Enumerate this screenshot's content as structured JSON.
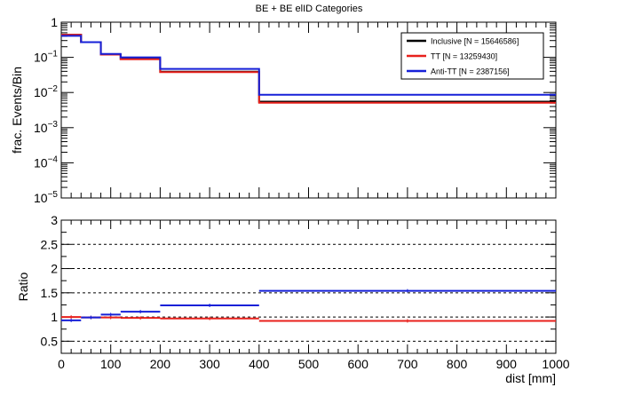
{
  "chart_data": [
    {
      "type": "line",
      "step": true,
      "title": "BE + BE elID Categories",
      "ylabel": "frac. Events/Bin",
      "xlabel": "",
      "xlim": [
        0,
        1000
      ],
      "ylim": [
        1e-05,
        1
      ],
      "yscale": "log",
      "yticks": [
        {
          "v": 1,
          "base": "1",
          "exp": ""
        },
        {
          "v": 0.1,
          "base": "10",
          "exp": "−1"
        },
        {
          "v": 0.01,
          "base": "10",
          "exp": "−2"
        },
        {
          "v": 0.001,
          "base": "10",
          "exp": "−3"
        },
        {
          "v": 0.0001,
          "base": "10",
          "exp": "−4"
        },
        {
          "v": 1e-05,
          "base": "10",
          "exp": "−5"
        }
      ],
      "bin_edges": [
        0,
        40,
        80,
        120,
        200,
        400,
        1000
      ],
      "legend_position": "top-right",
      "series": [
        {
          "name": "Inclusive [N = 15646586]",
          "color": "#000000",
          "values": [
            0.44,
            0.27,
            0.12,
            0.09,
            0.039,
            0.0055
          ]
        },
        {
          "name": "TT [N = 13259430]",
          "color": "#e8211c",
          "values": [
            0.44,
            0.27,
            0.12,
            0.088,
            0.038,
            0.0051
          ]
        },
        {
          "name": "Anti-TT [N = 2387156]",
          "color": "#1620d8",
          "values": [
            0.41,
            0.27,
            0.125,
            0.1,
            0.047,
            0.0086
          ]
        }
      ]
    },
    {
      "type": "line",
      "step": true,
      "title": "",
      "ylabel": "Ratio",
      "xlabel": "dist [mm]",
      "xlim": [
        0,
        1000
      ],
      "ylim": [
        0.25,
        3
      ],
      "xticks": [
        0,
        100,
        200,
        300,
        400,
        500,
        600,
        700,
        800,
        900,
        1000
      ],
      "yticks": [
        0.5,
        1,
        1.5,
        2,
        2.5,
        3
      ],
      "dashed_gridlines": [
        0.5,
        1,
        1.5,
        2,
        2.5
      ],
      "bin_edges": [
        0,
        40,
        80,
        120,
        200,
        400,
        1000
      ],
      "series": [
        {
          "name": "TT",
          "color": "#e8211c",
          "values": [
            1.0,
            0.99,
            0.99,
            0.98,
            0.97,
            0.92
          ]
        },
        {
          "name": "Anti-TT",
          "color": "#1620d8",
          "values": [
            0.93,
            0.99,
            1.05,
            1.11,
            1.24,
            1.54
          ]
        }
      ]
    }
  ]
}
